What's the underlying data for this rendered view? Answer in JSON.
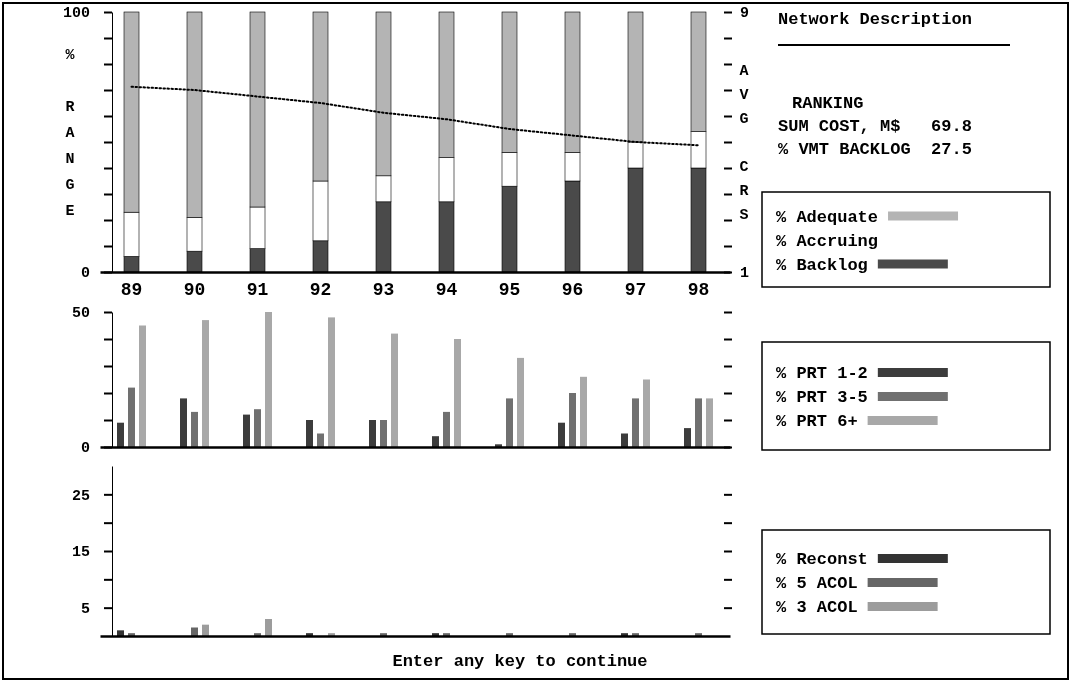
{
  "chart_data": [
    {
      "type": "bar",
      "stacked": true,
      "categories": [
        "89",
        "90",
        "91",
        "92",
        "93",
        "94",
        "95",
        "96",
        "97",
        "98"
      ],
      "ylabel": "% RANGE",
      "y2label": "AVG CRS",
      "ylim": [
        0,
        100
      ],
      "yticks": [
        0,
        {
          "value": 10,
          "label": null
        },
        {
          "value": 20,
          "label": null
        },
        {
          "value": 30,
          "label": null
        },
        {
          "value": 40,
          "label": null
        },
        {
          "value": 50,
          "label": null
        },
        {
          "value": 60,
          "label": null
        },
        {
          "value": 70,
          "label": null
        },
        {
          "value": 80,
          "label": null
        },
        {
          "value": 90,
          "label": null
        },
        100
      ],
      "y2lim": [
        1,
        9
      ],
      "y2ticks": [
        1,
        9
      ],
      "legend": "right",
      "series": [
        {
          "name": "% Backlog",
          "color": "#4a4a4a",
          "values": [
            6,
            8,
            9,
            12,
            27,
            27,
            33,
            35,
            40,
            40
          ]
        },
        {
          "name": "% Accruing",
          "color": "#ffffff",
          "values": [
            17,
            13,
            16,
            23,
            10,
            17,
            13,
            11,
            10,
            14
          ]
        },
        {
          "name": "% Adequate",
          "color": "#b4b4b4",
          "values": [
            77,
            79,
            75,
            65,
            63,
            56,
            54,
            54,
            50,
            46
          ]
        },
        {
          "type": "line",
          "axis": "y2",
          "color": "#000000",
          "line_style": "dotted",
          "marker": "none",
          "values": [
            6.7,
            6.6,
            6.4,
            6.2,
            5.9,
            5.7,
            5.4,
            5.2,
            5.0,
            4.9
          ]
        }
      ]
    },
    {
      "type": "bar",
      "categories": [
        "89",
        "90",
        "91",
        "92",
        "93",
        "94",
        "95",
        "96",
        "97",
        "98"
      ],
      "tick_labels": "y",
      "ylim": [
        0,
        50
      ],
      "yticks": [
        0,
        {
          "value": 10,
          "label": null
        },
        {
          "value": 20,
          "label": null
        },
        {
          "value": 30,
          "label": null
        },
        {
          "value": 40,
          "label": null
        },
        50
      ],
      "legend": "right",
      "series": [
        {
          "name": "% PRT 1-2",
          "color": "#3c3c3c",
          "values": [
            9,
            18,
            12,
            10,
            10,
            4,
            1,
            9,
            5,
            7
          ]
        },
        {
          "name": "% PRT 3-5",
          "color": "#707070",
          "values": [
            22,
            13,
            14,
            5,
            10,
            13,
            18,
            20,
            18,
            18
          ]
        },
        {
          "name": "% PRT 6+",
          "color": "#a8a8a8",
          "values": [
            45,
            47,
            50,
            48,
            42,
            40,
            33,
            26,
            25,
            18
          ]
        }
      ]
    },
    {
      "type": "bar",
      "categories": [
        "89",
        "90",
        "91",
        "92",
        "93",
        "94",
        "95",
        "96",
        "97",
        "98"
      ],
      "tick_labels": "y",
      "ylim": [
        0,
        30
      ],
      "yticks": [
        5,
        {
          "value": 10,
          "label": null
        },
        15,
        {
          "value": 20,
          "label": null
        },
        25
      ],
      "legend": "right",
      "annotations": [
        "Enter any key to continue"
      ],
      "series": [
        {
          "name": "% Reconst",
          "color": "#333333",
          "values": [
            1,
            0,
            0,
            0.5,
            0,
            0.5,
            0,
            0,
            0.5,
            0
          ]
        },
        {
          "name": "% 5 ACOL",
          "color": "#666666",
          "values": [
            0.5,
            1.5,
            0.5,
            0,
            0.5,
            0.5,
            0.5,
            0.5,
            0.5,
            0.5
          ]
        },
        {
          "name": "% 3 ACOL",
          "color": "#9c9c9c",
          "values": [
            0,
            2,
            3,
            0.5,
            0,
            0,
            0,
            0,
            0,
            0
          ]
        }
      ]
    },
    {
      "type": "other",
      "title": "Network Description",
      "annotations": [
        "RANKING",
        "SUM COST, M$   69.8",
        "% VMT BACKLOG  27.5"
      ]
    }
  ]
}
